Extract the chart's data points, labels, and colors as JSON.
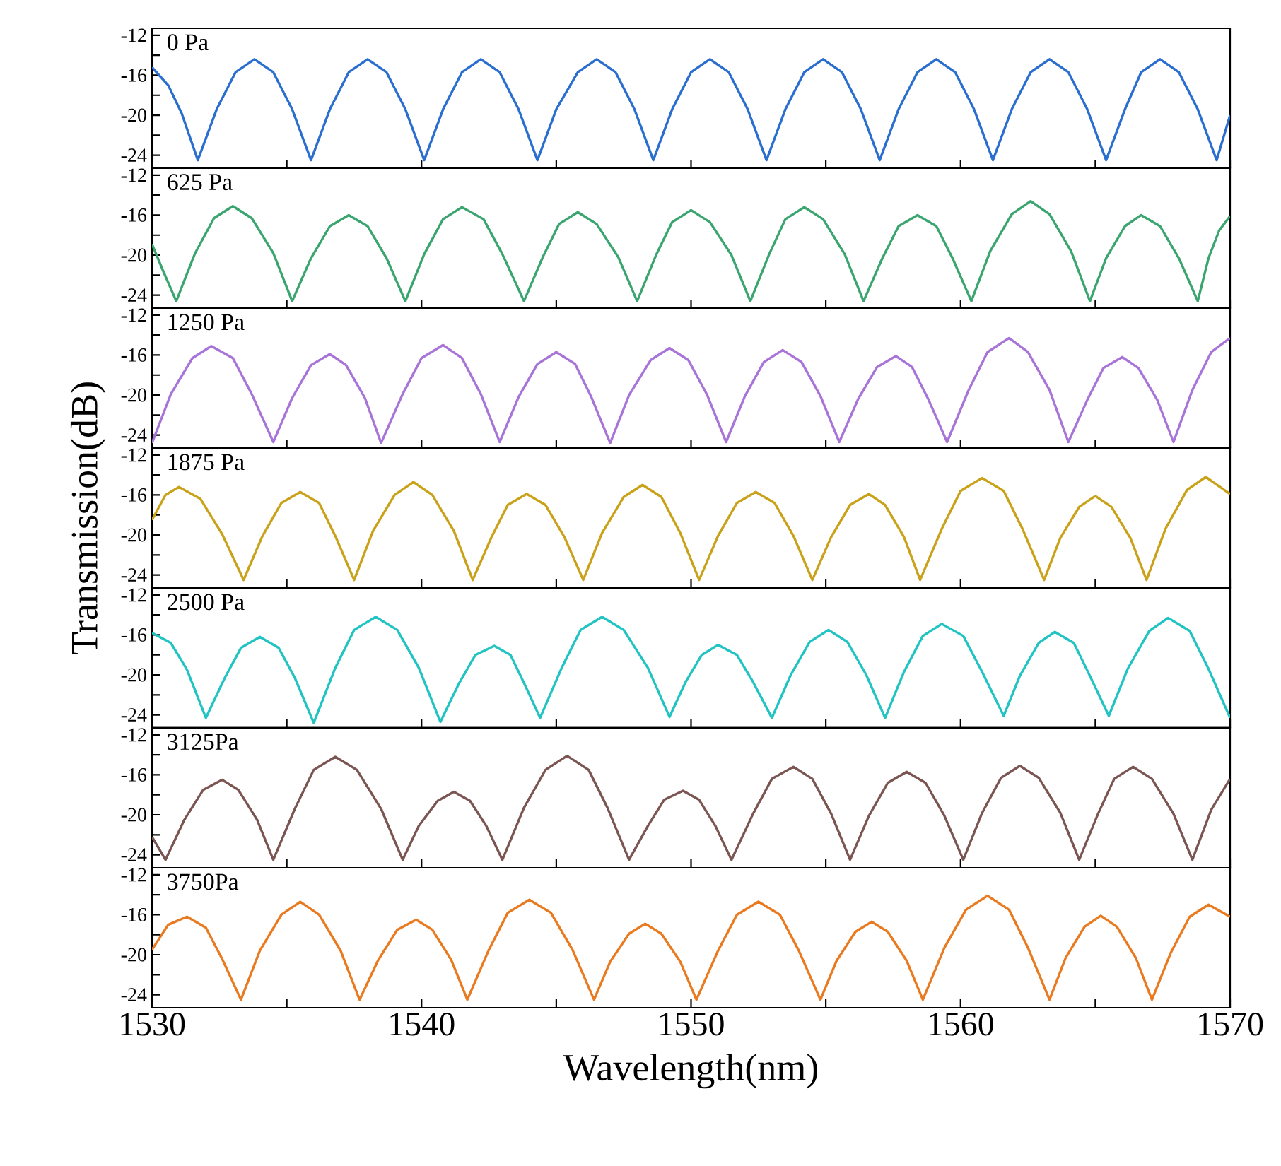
{
  "chart_data": [
    {
      "type": "line",
      "xlim": [
        1530,
        1570
      ],
      "ylim": [
        -25.3,
        -11.3
      ],
      "xticks": [
        1530,
        {
          "value": 1535,
          "label": null
        },
        1540,
        {
          "value": 1545,
          "label": null
        },
        1550,
        {
          "value": 1555,
          "label": null
        },
        1560,
        {
          "value": 1565,
          "label": null
        },
        1570
      ],
      "yticks": [
        -12,
        {
          "value": -14,
          "label": null
        },
        -16,
        {
          "value": -18,
          "label": null
        },
        -20,
        {
          "value": -22,
          "label": null
        },
        -24
      ],
      "tick_labels": "y",
      "series": [
        {
          "name": "0 Pa",
          "color": "#2a6fd0",
          "x": [
            1530.0,
            1530.6,
            1531.1,
            1531.7,
            1532.4,
            1533.1,
            1533.8,
            1534.5,
            1535.2,
            1535.9,
            1536.6,
            1537.3,
            1538.0,
            1538.7,
            1539.4,
            1540.1,
            1540.8,
            1541.5,
            1542.2,
            1542.9,
            1543.6,
            1544.3,
            1545.0,
            1545.8,
            1546.5,
            1547.2,
            1547.9,
            1548.6,
            1549.3,
            1550.0,
            1550.7,
            1551.4,
            1552.1,
            1552.8,
            1553.5,
            1554.2,
            1554.9,
            1555.6,
            1556.3,
            1557.0,
            1557.7,
            1558.4,
            1559.1,
            1559.8,
            1560.5,
            1561.2,
            1561.9,
            1562.6,
            1563.3,
            1564.0,
            1564.7,
            1565.4,
            1566.1,
            1566.7,
            1567.4,
            1568.1,
            1568.8,
            1569.5,
            1570.0
          ],
          "values": [
            -15.2,
            -17.0,
            -19.8,
            -24.5,
            -19.4,
            -15.7,
            -14.4,
            -15.7,
            -19.4,
            -24.5,
            -19.4,
            -15.7,
            -14.4,
            -15.7,
            -19.4,
            -24.5,
            -19.4,
            -15.7,
            -14.4,
            -15.7,
            -19.4,
            -24.5,
            -19.4,
            -15.7,
            -14.4,
            -15.7,
            -19.4,
            -24.5,
            -19.4,
            -15.7,
            -14.4,
            -15.7,
            -19.4,
            -24.5,
            -19.4,
            -15.7,
            -14.4,
            -15.7,
            -19.4,
            -24.5,
            -19.4,
            -15.7,
            -14.4,
            -15.7,
            -19.4,
            -24.5,
            -19.4,
            -15.7,
            -14.4,
            -15.7,
            -19.4,
            -24.5,
            -19.4,
            -15.7,
            -14.4,
            -15.7,
            -19.4,
            -24.5,
            -20.0
          ]
        }
      ]
    },
    {
      "type": "line",
      "xlim": [
        1530,
        1570
      ],
      "ylim": [
        -25.3,
        -11.3
      ],
      "xticks": [
        1530,
        {
          "value": 1535,
          "label": null
        },
        1540,
        {
          "value": 1545,
          "label": null
        },
        1550,
        {
          "value": 1555,
          "label": null
        },
        1560,
        {
          "value": 1565,
          "label": null
        },
        1570
      ],
      "yticks": [
        -12,
        {
          "value": -14,
          "label": null
        },
        -16,
        {
          "value": -18,
          "label": null
        },
        -20,
        {
          "value": -22,
          "label": null
        },
        -24
      ],
      "tick_labels": "y",
      "series": [
        {
          "name": "625 Pa",
          "color": "#3aa56e",
          "x": [
            1530.0,
            1530.4,
            1530.9,
            1531.6,
            1532.3,
            1533.0,
            1533.7,
            1534.5,
            1535.2,
            1535.9,
            1536.6,
            1537.3,
            1538.0,
            1538.7,
            1539.4,
            1540.1,
            1540.8,
            1541.5,
            1542.3,
            1543.0,
            1543.8,
            1544.5,
            1545.1,
            1545.8,
            1546.5,
            1547.3,
            1548.0,
            1548.7,
            1549.3,
            1550.0,
            1550.7,
            1551.5,
            1552.2,
            1552.9,
            1553.5,
            1554.2,
            1554.9,
            1555.7,
            1556.4,
            1557.1,
            1557.7,
            1558.4,
            1559.1,
            1559.7,
            1560.4,
            1561.1,
            1561.9,
            1562.6,
            1563.3,
            1564.1,
            1564.8,
            1565.4,
            1566.1,
            1566.7,
            1567.4,
            1568.1,
            1568.8,
            1569.2,
            1569.6,
            1570.0
          ],
          "values": [
            -18.9,
            -21.5,
            -24.6,
            -19.8,
            -16.3,
            -15.1,
            -16.3,
            -19.8,
            -24.6,
            -20.3,
            -17.1,
            -16.0,
            -17.1,
            -20.3,
            -24.6,
            -19.9,
            -16.4,
            -15.2,
            -16.4,
            -19.9,
            -24.6,
            -20.2,
            -16.9,
            -15.7,
            -16.9,
            -20.2,
            -24.6,
            -20.0,
            -16.7,
            -15.5,
            -16.7,
            -20.0,
            -24.6,
            -19.9,
            -16.4,
            -15.2,
            -16.4,
            -19.9,
            -24.6,
            -20.3,
            -17.1,
            -16.0,
            -17.1,
            -20.3,
            -24.6,
            -19.6,
            -15.9,
            -14.6,
            -15.9,
            -19.6,
            -24.6,
            -20.3,
            -17.1,
            -16.0,
            -17.1,
            -20.3,
            -24.6,
            -20.3,
            -17.5,
            -16.1
          ]
        }
      ]
    },
    {
      "type": "line",
      "xlim": [
        1530,
        1570
      ],
      "ylim": [
        -25.3,
        -11.3
      ],
      "xticks": [
        1530,
        {
          "value": 1535,
          "label": null
        },
        1540,
        {
          "value": 1545,
          "label": null
        },
        1550,
        {
          "value": 1555,
          "label": null
        },
        1560,
        {
          "value": 1565,
          "label": null
        },
        1570
      ],
      "yticks": [
        -12,
        {
          "value": -14,
          "label": null
        },
        -16,
        {
          "value": -18,
          "label": null
        },
        -20,
        {
          "value": -22,
          "label": null
        },
        -24
      ],
      "tick_labels": "y",
      "series": [
        {
          "name": "1250 Pa",
          "color": "#a874d8",
          "x": [
            1530.0,
            1530.7,
            1531.5,
            1532.2,
            1533.0,
            1533.7,
            1534.5,
            1535.2,
            1535.9,
            1536.6,
            1537.2,
            1537.9,
            1538.5,
            1539.3,
            1540.0,
            1540.8,
            1541.5,
            1542.2,
            1542.9,
            1543.6,
            1544.3,
            1545.0,
            1545.7,
            1546.3,
            1547.0,
            1547.7,
            1548.5,
            1549.2,
            1549.9,
            1550.6,
            1551.3,
            1552.0,
            1552.7,
            1553.4,
            1554.1,
            1554.8,
            1555.5,
            1556.2,
            1556.9,
            1557.6,
            1558.2,
            1558.8,
            1559.5,
            1560.3,
            1561.0,
            1561.8,
            1562.5,
            1563.3,
            1564.0,
            1564.7,
            1565.3,
            1566.0,
            1566.6,
            1567.3,
            1567.9,
            1568.6,
            1569.3,
            1570.0
          ],
          "values": [
            -24.8,
            -19.9,
            -16.3,
            -15.1,
            -16.3,
            -19.9,
            -24.7,
            -20.3,
            -17.0,
            -15.9,
            -17.0,
            -20.3,
            -24.8,
            -19.9,
            -16.3,
            -15.0,
            -16.3,
            -19.9,
            -24.7,
            -20.2,
            -16.9,
            -15.7,
            -16.9,
            -20.2,
            -24.8,
            -20.0,
            -16.5,
            -15.3,
            -16.5,
            -20.0,
            -24.7,
            -20.1,
            -16.7,
            -15.5,
            -16.7,
            -20.1,
            -24.7,
            -20.4,
            -17.2,
            -16.1,
            -17.2,
            -20.4,
            -24.7,
            -19.5,
            -15.7,
            -14.3,
            -15.7,
            -19.5,
            -24.7,
            -20.5,
            -17.3,
            -16.2,
            -17.3,
            -20.5,
            -24.7,
            -19.5,
            -15.7,
            -14.3
          ]
        }
      ]
    },
    {
      "type": "line",
      "ylabel": "Transmission(dB)",
      "xlim": [
        1530,
        1570
      ],
      "ylim": [
        -25.3,
        -11.3
      ],
      "xticks": [
        1530,
        {
          "value": 1535,
          "label": null
        },
        1540,
        {
          "value": 1545,
          "label": null
        },
        1550,
        {
          "value": 1555,
          "label": null
        },
        1560,
        {
          "value": 1565,
          "label": null
        },
        1570
      ],
      "yticks": [
        -12,
        {
          "value": -14,
          "label": null
        },
        -16,
        {
          "value": -18,
          "label": null
        },
        -20,
        {
          "value": -22,
          "label": null
        },
        -24
      ],
      "tick_labels": "y",
      "series": [
        {
          "name": "1875 Pa",
          "color": "#c9a21a",
          "x": [
            1530.0,
            1530.5,
            1531.0,
            1531.8,
            1532.6,
            1533.4,
            1534.1,
            1534.8,
            1535.5,
            1536.2,
            1536.8,
            1537.5,
            1538.2,
            1539.0,
            1539.7,
            1540.4,
            1541.2,
            1541.9,
            1542.6,
            1543.2,
            1543.9,
            1544.6,
            1545.3,
            1546.0,
            1546.7,
            1547.5,
            1548.2,
            1548.9,
            1549.6,
            1550.3,
            1551.0,
            1551.7,
            1552.4,
            1553.1,
            1553.8,
            1554.5,
            1555.2,
            1555.9,
            1556.6,
            1557.2,
            1557.9,
            1558.5,
            1559.3,
            1560.0,
            1560.8,
            1561.6,
            1562.3,
            1563.1,
            1563.7,
            1564.4,
            1565.0,
            1565.6,
            1566.3,
            1566.9,
            1567.6,
            1568.4,
            1569.1,
            1570.0
          ],
          "values": [
            -18.5,
            -16.0,
            -15.2,
            -16.4,
            -19.9,
            -24.5,
            -20.1,
            -16.8,
            -15.7,
            -16.8,
            -20.1,
            -24.5,
            -19.6,
            -16.0,
            -14.7,
            -16.0,
            -19.6,
            -24.5,
            -20.2,
            -17.0,
            -15.9,
            -17.0,
            -20.2,
            -24.5,
            -19.8,
            -16.2,
            -15.0,
            -16.2,
            -19.8,
            -24.5,
            -20.1,
            -16.8,
            -15.7,
            -16.8,
            -20.1,
            -24.5,
            -20.2,
            -17.0,
            -15.9,
            -17.0,
            -20.2,
            -24.5,
            -19.4,
            -15.6,
            -14.3,
            -15.6,
            -19.4,
            -24.5,
            -20.3,
            -17.2,
            -16.1,
            -17.2,
            -20.3,
            -24.5,
            -19.4,
            -15.5,
            -14.2,
            -15.9
          ]
        }
      ]
    },
    {
      "type": "line",
      "xlim": [
        1530,
        1570
      ],
      "ylim": [
        -25.3,
        -11.3
      ],
      "xticks": [
        1530,
        {
          "value": 1535,
          "label": null
        },
        1540,
        {
          "value": 1545,
          "label": null
        },
        1550,
        {
          "value": 1555,
          "label": null
        },
        1560,
        {
          "value": 1565,
          "label": null
        },
        1570
      ],
      "yticks": [
        -12,
        {
          "value": -14,
          "label": null
        },
        -16,
        {
          "value": -18,
          "label": null
        },
        -20,
        {
          "value": -22,
          "label": null
        },
        -24
      ],
      "tick_labels": "y",
      "series": [
        {
          "name": "2500 Pa",
          "color": "#22c3c3",
          "x": [
            1530.0,
            1530.7,
            1531.3,
            1532.0,
            1532.7,
            1533.3,
            1534.0,
            1534.7,
            1535.3,
            1536.0,
            1536.8,
            1537.5,
            1538.3,
            1539.1,
            1539.9,
            1540.7,
            1541.4,
            1542.0,
            1542.7,
            1543.3,
            1543.8,
            1544.4,
            1545.2,
            1545.9,
            1546.7,
            1547.5,
            1548.4,
            1549.2,
            1549.8,
            1550.4,
            1551.0,
            1551.7,
            1552.3,
            1553.0,
            1553.7,
            1554.4,
            1555.1,
            1555.8,
            1556.5,
            1557.2,
            1557.9,
            1558.6,
            1559.3,
            1560.1,
            1560.8,
            1561.6,
            1562.2,
            1562.9,
            1563.5,
            1564.2,
            1564.8,
            1565.5,
            1566.2,
            1567.0,
            1567.7,
            1568.5,
            1569.2,
            1570.0
          ],
          "values": [
            -15.8,
            -16.8,
            -19.5,
            -24.3,
            -20.3,
            -17.3,
            -16.2,
            -17.3,
            -20.3,
            -24.8,
            -19.3,
            -15.5,
            -14.2,
            -15.5,
            -19.3,
            -24.7,
            -20.8,
            -18.0,
            -17.1,
            -18.0,
            -20.8,
            -24.3,
            -19.3,
            -15.5,
            -14.2,
            -15.5,
            -19.3,
            -24.2,
            -20.7,
            -18.0,
            -17.0,
            -18.0,
            -20.7,
            -24.3,
            -20.0,
            -16.7,
            -15.5,
            -16.7,
            -20.0,
            -24.3,
            -19.7,
            -16.1,
            -14.9,
            -16.1,
            -19.7,
            -24.1,
            -20.1,
            -16.8,
            -15.7,
            -16.8,
            -20.1,
            -24.1,
            -19.4,
            -15.6,
            -14.3,
            -15.6,
            -19.4,
            -24.3
          ]
        }
      ]
    },
    {
      "type": "line",
      "xlim": [
        1530,
        1570
      ],
      "ylim": [
        -25.3,
        -11.3
      ],
      "xticks": [
        1530,
        {
          "value": 1535,
          "label": null
        },
        1540,
        {
          "value": 1545,
          "label": null
        },
        1550,
        {
          "value": 1555,
          "label": null
        },
        1560,
        {
          "value": 1565,
          "label": null
        },
        1570
      ],
      "yticks": [
        -12,
        {
          "value": -14,
          "label": null
        },
        -16,
        {
          "value": -18,
          "label": null
        },
        -20,
        {
          "value": -22,
          "label": null
        },
        -24
      ],
      "tick_labels": "y",
      "series": [
        {
          "name": "3125Pa",
          "color": "#7b5552",
          "x": [
            1530.0,
            1530.5,
            1531.2,
            1531.9,
            1532.6,
            1533.2,
            1533.9,
            1534.5,
            1535.3,
            1536.0,
            1536.8,
            1537.6,
            1538.5,
            1539.3,
            1539.9,
            1540.6,
            1541.2,
            1541.8,
            1542.4,
            1543.0,
            1543.8,
            1544.6,
            1545.4,
            1546.2,
            1546.9,
            1547.7,
            1548.4,
            1549.0,
            1549.7,
            1550.3,
            1550.9,
            1551.5,
            1552.3,
            1553.0,
            1553.8,
            1554.5,
            1555.2,
            1555.9,
            1556.6,
            1557.3,
            1558.0,
            1558.7,
            1559.4,
            1560.1,
            1560.8,
            1561.5,
            1562.2,
            1562.9,
            1563.7,
            1564.4,
            1565.1,
            1565.7,
            1566.4,
            1567.1,
            1567.9,
            1568.6,
            1569.3,
            1570.0
          ],
          "values": [
            -22.2,
            -24.5,
            -20.5,
            -17.5,
            -16.5,
            -17.5,
            -20.5,
            -24.5,
            -19.4,
            -15.5,
            -14.2,
            -15.5,
            -19.4,
            -24.5,
            -21.1,
            -18.6,
            -17.7,
            -18.6,
            -21.1,
            -24.5,
            -19.3,
            -15.5,
            -14.1,
            -15.5,
            -19.3,
            -24.5,
            -21.1,
            -18.5,
            -17.6,
            -18.5,
            -21.1,
            -24.5,
            -19.9,
            -16.4,
            -15.2,
            -16.4,
            -19.9,
            -24.5,
            -20.1,
            -16.8,
            -15.7,
            -16.8,
            -20.1,
            -24.5,
            -19.8,
            -16.3,
            -15.1,
            -16.3,
            -19.8,
            -24.5,
            -19.9,
            -16.4,
            -15.2,
            -16.4,
            -19.9,
            -24.5,
            -19.5,
            -16.4
          ]
        }
      ]
    },
    {
      "type": "line",
      "xlabel": "Wavelength(nm)",
      "xlim": [
        1530,
        1570
      ],
      "ylim": [
        -25.3,
        -11.3
      ],
      "xticks": [
        1530,
        {
          "value": 1535,
          "label": null
        },
        1540,
        {
          "value": 1545,
          "label": null
        },
        1550,
        {
          "value": 1555,
          "label": null
        },
        1560,
        {
          "value": 1565,
          "label": null
        },
        1570
      ],
      "yticks": [
        -12,
        {
          "value": -14,
          "label": null
        },
        -16,
        {
          "value": -18,
          "label": null
        },
        -20,
        {
          "value": -22,
          "label": null
        },
        -24
      ],
      "series": [
        {
          "name": "3750Pa",
          "color": "#ea7a1f",
          "x": [
            1530.0,
            1530.6,
            1531.3,
            1532.0,
            1532.6,
            1533.3,
            1534.0,
            1534.8,
            1535.5,
            1536.2,
            1537.0,
            1537.7,
            1538.4,
            1539.1,
            1539.8,
            1540.4,
            1541.1,
            1541.7,
            1542.5,
            1543.2,
            1544.0,
            1544.8,
            1545.6,
            1546.4,
            1547.0,
            1547.7,
            1548.3,
            1548.9,
            1549.6,
            1550.2,
            1551.0,
            1551.7,
            1552.5,
            1553.3,
            1554.0,
            1554.8,
            1555.4,
            1556.1,
            1556.7,
            1557.3,
            1558.0,
            1558.6,
            1559.4,
            1560.2,
            1561.0,
            1561.8,
            1562.5,
            1563.3,
            1563.9,
            1564.6,
            1565.2,
            1565.8,
            1566.5,
            1567.1,
            1567.8,
            1568.5,
            1569.2,
            1570.0
          ],
          "values": [
            -19.5,
            -17.0,
            -16.2,
            -17.3,
            -20.4,
            -24.5,
            -19.6,
            -16.0,
            -14.7,
            -16.0,
            -19.6,
            -24.5,
            -20.5,
            -17.5,
            -16.5,
            -17.5,
            -20.5,
            -24.5,
            -19.5,
            -15.8,
            -14.5,
            -15.8,
            -19.5,
            -24.5,
            -20.7,
            -17.9,
            -16.9,
            -17.9,
            -20.7,
            -24.5,
            -19.6,
            -16.0,
            -14.7,
            -16.0,
            -19.6,
            -24.5,
            -20.6,
            -17.7,
            -16.7,
            -17.7,
            -20.6,
            -24.5,
            -19.3,
            -15.5,
            -14.1,
            -15.5,
            -19.3,
            -24.5,
            -20.3,
            -17.2,
            -16.1,
            -17.2,
            -20.3,
            -24.5,
            -19.8,
            -16.2,
            -15.0,
            -16.2
          ]
        }
      ]
    }
  ]
}
